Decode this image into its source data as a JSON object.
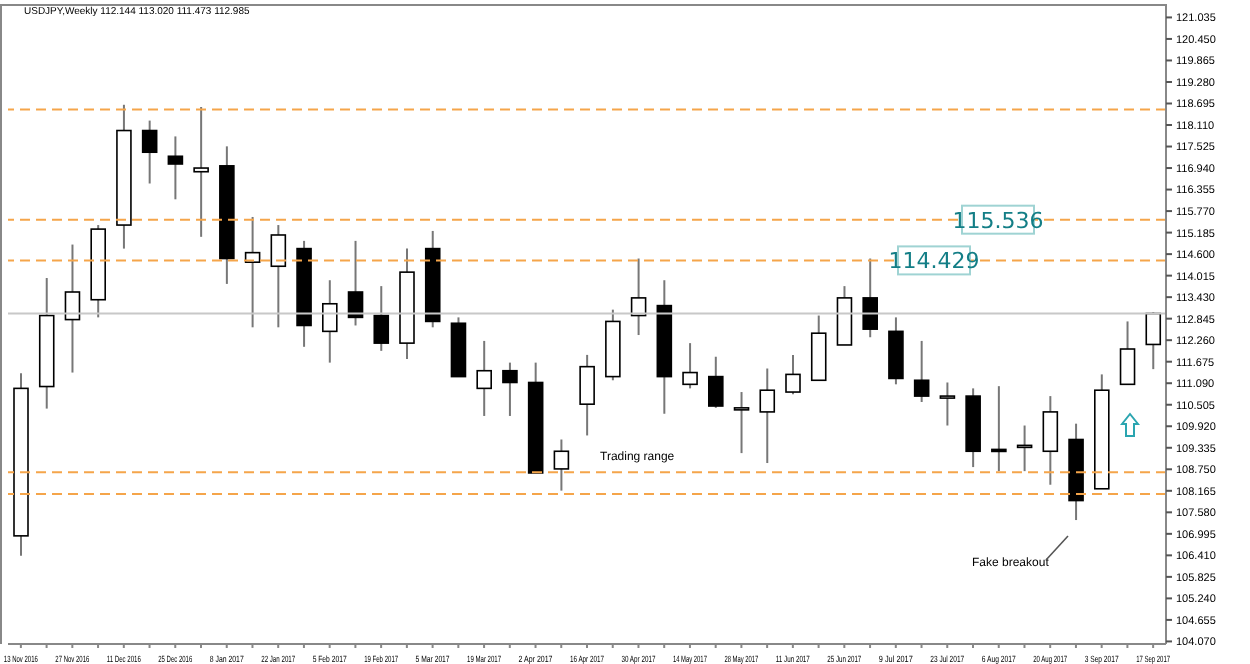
{
  "chart_data": {
    "type": "candlestick",
    "title": "USDJPY,Weekly 112.144 113.020 111.473 112.985",
    "categories": [
      "13 Nov 2016",
      null,
      "27 Nov 2016",
      null,
      "11 Dec 2016",
      null,
      "25 Dec 2016",
      null,
      "8 Jan 2017",
      null,
      "22 Jan 2017",
      null,
      "5 Feb 2017",
      null,
      "19 Feb 2017",
      null,
      "5 Mar 2017",
      null,
      "19 Mar 2017",
      null,
      "2 Apr 2017",
      null,
      "16 Apr 2017",
      null,
      "30 Apr 2017",
      null,
      "14 May 2017",
      null,
      "28 May 2017",
      null,
      "11 Jun 2017",
      null,
      "25 Jun 2017",
      null,
      "9 Jul 2017",
      null,
      "23 Jul 2017",
      null,
      "6 Aug 2017",
      null,
      "20 Aug 2017",
      null,
      "3 Sep 2017",
      null,
      "17 Sep 2017"
    ],
    "ohlc": [
      [
        106.94,
        111.36,
        106.4,
        110.95
      ],
      [
        111.0,
        113.95,
        110.4,
        112.93
      ],
      [
        112.82,
        114.86,
        111.38,
        113.57
      ],
      [
        113.36,
        115.39,
        112.88,
        115.28
      ],
      [
        115.39,
        118.66,
        114.75,
        117.96
      ],
      [
        117.96,
        118.23,
        116.52,
        117.37
      ],
      [
        117.26,
        117.8,
        116.09,
        117.05
      ],
      [
        116.84,
        118.6,
        115.07,
        116.94
      ],
      [
        117.0,
        117.53,
        113.79,
        114.48
      ],
      [
        114.38,
        115.61,
        112.61,
        114.64
      ],
      [
        114.27,
        115.39,
        112.61,
        115.12
      ],
      [
        114.75,
        114.96,
        112.08,
        112.66
      ],
      [
        112.5,
        113.89,
        111.65,
        113.25
      ],
      [
        113.57,
        114.96,
        112.66,
        112.88
      ],
      [
        112.93,
        113.73,
        111.97,
        112.18
      ],
      [
        112.18,
        114.75,
        111.75,
        114.11
      ],
      [
        114.75,
        115.23,
        112.61,
        112.77
      ],
      [
        112.72,
        112.88,
        111.27,
        111.27
      ],
      [
        110.95,
        112.24,
        110.2,
        111.43
      ],
      [
        111.43,
        111.65,
        110.2,
        111.11
      ],
      [
        111.11,
        111.65,
        108.65,
        108.65
      ],
      [
        108.76,
        109.56,
        108.17,
        109.24
      ],
      [
        110.52,
        111.86,
        109.67,
        111.54
      ],
      [
        111.27,
        113.09,
        111.17,
        112.77
      ],
      [
        112.93,
        114.48,
        112.4,
        113.41
      ],
      [
        113.2,
        113.89,
        110.26,
        111.27
      ],
      [
        111.06,
        112.18,
        110.95,
        111.38
      ],
      [
        111.27,
        111.81,
        110.42,
        110.47
      ],
      [
        110.42,
        110.85,
        109.19,
        110.42
      ],
      [
        110.31,
        111.49,
        108.92,
        110.9
      ],
      [
        110.85,
        111.86,
        110.79,
        111.33
      ],
      [
        111.17,
        112.93,
        111.17,
        112.45
      ],
      [
        112.13,
        113.73,
        112.13,
        113.41
      ],
      [
        113.41,
        114.48,
        112.34,
        112.56
      ],
      [
        112.5,
        112.88,
        111.06,
        111.22
      ],
      [
        111.17,
        112.24,
        110.58,
        110.74
      ],
      [
        110.74,
        111.11,
        109.94,
        110.74
      ],
      [
        110.74,
        110.95,
        108.81,
        109.24
      ],
      [
        109.29,
        111.01,
        108.7,
        109.24
      ],
      [
        109.4,
        109.94,
        108.7,
        109.4
      ],
      [
        109.24,
        110.74,
        108.33,
        110.31
      ],
      [
        109.56,
        109.99,
        107.37,
        107.9
      ],
      [
        108.22,
        111.33,
        108.22,
        110.9
      ],
      [
        111.06,
        112.77,
        111.06,
        112.02
      ],
      [
        112.144,
        113.02,
        111.473,
        112.985
      ]
    ],
    "colors": [
      "#ffffff",
      "#ffffff",
      "#ffffff",
      "#ffffff",
      "#ffffff",
      "#000000",
      "#000000",
      "#ffffff",
      "#000000",
      "#ffffff",
      "#ffffff",
      "#000000",
      "#ffffff",
      "#000000",
      "#000000",
      "#ffffff",
      "#000000",
      "#000000",
      "#ffffff",
      "#000000",
      "#000000",
      "#ffffff",
      "#ffffff",
      "#ffffff",
      "#ffffff",
      "#000000",
      "#ffffff",
      "#000000",
      "#ffffff",
      "#ffffff",
      "#ffffff",
      "#ffffff",
      "#ffffff",
      "#000000",
      "#000000",
      "#000000",
      "#ffffff",
      "#000000",
      "#000000",
      "#ffffff",
      "#ffffff",
      "#000000",
      "#ffffff",
      "#ffffff",
      "#ffffff"
    ],
    "ylim": [
      104.0,
      121.4
    ],
    "yticks": [
      {
        "value": 104.07,
        "label": "104.070"
      },
      {
        "value": 104.655,
        "label": "104.655"
      },
      {
        "value": 105.24,
        "label": "105.240"
      },
      {
        "value": 105.825,
        "label": "105.825"
      },
      {
        "value": 106.41,
        "label": "106.410"
      },
      {
        "value": 106.995,
        "label": "106.995"
      },
      {
        "value": 107.58,
        "label": "107.580"
      },
      {
        "value": 108.165,
        "label": "108.165"
      },
      {
        "value": 108.75,
        "label": "108.750"
      },
      {
        "value": 109.335,
        "label": "109.335"
      },
      {
        "value": 109.92,
        "label": "109.920"
      },
      {
        "value": 110.505,
        "label": "110.505"
      },
      {
        "value": 111.09,
        "label": "111.090"
      },
      {
        "value": 111.675,
        "label": "111.675"
      },
      {
        "value": 112.26,
        "label": "112.260"
      },
      {
        "value": 112.845,
        "label": "112.845"
      },
      {
        "value": 113.43,
        "label": "113.430"
      },
      {
        "value": 114.015,
        "label": "114.015"
      },
      {
        "value": 114.6,
        "label": "114.600"
      },
      {
        "value": 115.185,
        "label": "115.185"
      },
      {
        "value": 115.77,
        "label": "115.770"
      },
      {
        "value": 116.355,
        "label": "116.355"
      },
      {
        "value": 116.94,
        "label": "116.940"
      },
      {
        "value": 117.525,
        "label": "117.525"
      },
      {
        "value": 118.11,
        "label": "118.110"
      },
      {
        "value": 118.695,
        "label": "118.695"
      },
      {
        "value": 119.28,
        "label": "119.280"
      },
      {
        "value": 119.865,
        "label": "119.865"
      },
      {
        "value": 120.45,
        "label": "120.450"
      },
      {
        "value": 121.035,
        "label": "121.035"
      }
    ],
    "ref_lines": [
      {
        "axis": "y",
        "value": 118.53,
        "label": null,
        "color": "#f5a54a",
        "line_style": "dashed"
      },
      {
        "axis": "y",
        "value": 115.536,
        "label": "115.536",
        "color": "#f5a54a",
        "line_style": "dashed"
      },
      {
        "axis": "y",
        "value": 114.429,
        "label": "114.429",
        "color": "#f5a54a",
        "line_style": "dashed"
      },
      {
        "axis": "y",
        "value": 112.985,
        "label": null,
        "color": "#c8c8c8",
        "line_style": "solid"
      },
      {
        "axis": "y",
        "value": 108.67,
        "label": null,
        "color": "#f5a54a",
        "line_style": "dashed"
      },
      {
        "axis": "y",
        "value": 108.08,
        "label": null,
        "color": "#f5a54a",
        "line_style": "dashed"
      }
    ],
    "annotations": [
      "Trading range",
      "Fake breakout"
    ]
  }
}
